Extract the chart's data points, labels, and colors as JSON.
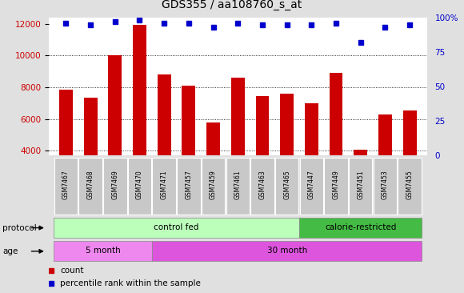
{
  "title": "GDS355 / aa108760_s_at",
  "samples": [
    "GSM7467",
    "GSM7468",
    "GSM7469",
    "GSM7470",
    "GSM7471",
    "GSM7457",
    "GSM7459",
    "GSM7461",
    "GSM7463",
    "GSM7465",
    "GSM7447",
    "GSM7449",
    "GSM7451",
    "GSM7453",
    "GSM7455"
  ],
  "counts": [
    7850,
    7350,
    10000,
    11950,
    8800,
    8100,
    5750,
    8600,
    7450,
    7600,
    7000,
    8900,
    4050,
    6300,
    6550
  ],
  "percentile": [
    96,
    95,
    97,
    98,
    96,
    96,
    93,
    96,
    95,
    95,
    95,
    96,
    82,
    93,
    95
  ],
  "bar_color": "#cc0000",
  "dot_color": "#0000cc",
  "ylim_left": [
    3700,
    12400
  ],
  "ylim_right": [
    0,
    100
  ],
  "yticks_left": [
    4000,
    6000,
    8000,
    10000,
    12000
  ],
  "yticks_right": [
    0,
    25,
    50,
    75,
    100
  ],
  "ytick_labels_right": [
    "0",
    "25",
    "50",
    "75",
    "100%"
  ],
  "grid_lines": [
    4000,
    6000,
    8000,
    10000
  ],
  "background_color": "#e0e0e0",
  "plot_bg": "#ffffff",
  "protocol_groups": [
    {
      "label": "control fed",
      "start": 0,
      "end": 10,
      "color": "#bbffbb"
    },
    {
      "label": "calorie-restricted",
      "start": 10,
      "end": 15,
      "color": "#44bb44"
    }
  ],
  "age_groups": [
    {
      "label": "5 month",
      "start": 0,
      "end": 4,
      "color": "#ee88ee"
    },
    {
      "label": "30 month",
      "start": 4,
      "end": 15,
      "color": "#dd55dd"
    }
  ],
  "title_fontsize": 10,
  "tick_fontsize": 7.5,
  "left_tick_color": "#cc0000",
  "right_tick_color": "#0000cc",
  "sample_box_color": "#c8c8c8"
}
